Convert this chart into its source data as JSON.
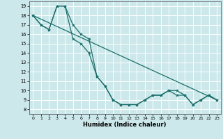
{
  "xlabel": "Humidex (Indice chaleur)",
  "bg_color": "#cce8ea",
  "grid_color": "#ffffff",
  "line_color": "#1a6e6a",
  "xlim": [
    -0.5,
    23.5
  ],
  "ylim": [
    7.5,
    19.5
  ],
  "xticks": [
    0,
    1,
    2,
    3,
    4,
    5,
    6,
    7,
    8,
    9,
    10,
    11,
    12,
    13,
    14,
    15,
    16,
    17,
    18,
    19,
    20,
    21,
    22,
    23
  ],
  "yticks": [
    8,
    9,
    10,
    11,
    12,
    13,
    14,
    15,
    16,
    17,
    18,
    19
  ],
  "line1_x": [
    0,
    1,
    2,
    3,
    4,
    5,
    6,
    7,
    8,
    9,
    10,
    11,
    12,
    13,
    14,
    15,
    16,
    17,
    18,
    19,
    20,
    21,
    22,
    23
  ],
  "line1_y": [
    18,
    17,
    16.5,
    19,
    19,
    17,
    16,
    15.5,
    11.5,
    10.5,
    9,
    8.5,
    8.5,
    8.5,
    9,
    9.5,
    9.5,
    10,
    10,
    9.5,
    8.5,
    9,
    9.5,
    9
  ],
  "line2_x": [
    0,
    1,
    2,
    3,
    4,
    5,
    6,
    7,
    8,
    9,
    10,
    11,
    12,
    13,
    14,
    15,
    16,
    17,
    18,
    19,
    20,
    21,
    22,
    23
  ],
  "line2_y": [
    18,
    17,
    16.5,
    19,
    19,
    15.5,
    15,
    14,
    11.5,
    10.5,
    9,
    8.5,
    8.5,
    8.5,
    9,
    9.5,
    9.5,
    10,
    9.5,
    9.5,
    8.5,
    9,
    9.5,
    9
  ],
  "line3_x": [
    0,
    23
  ],
  "line3_y": [
    18,
    9
  ]
}
